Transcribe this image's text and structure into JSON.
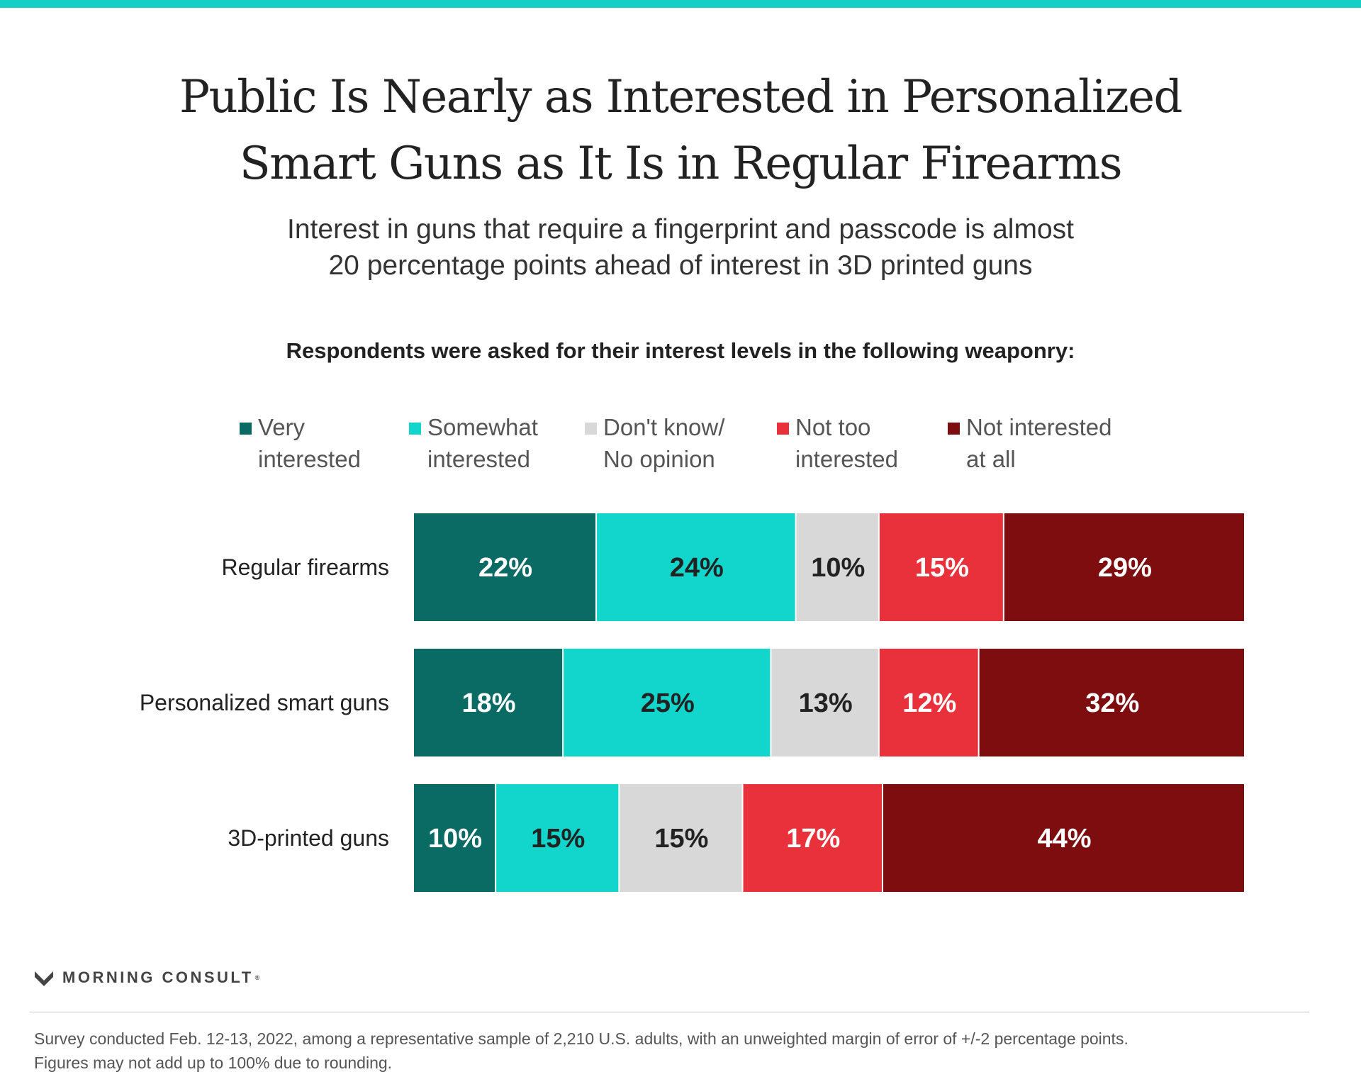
{
  "title": "Public Is Nearly as Interested in Personalized\nSmart Guns as It Is in Regular Firearms",
  "subtitle": "Interest in guns that require a fingerprint and passcode is almost\n20 percentage points ahead of interest in 3D printed guns",
  "question": "Respondents were asked for their interest levels in the following weaponry:",
  "legend": [
    {
      "label": "Very\ninterested",
      "color": "#096b63"
    },
    {
      "label": "Somewhat\ninterested",
      "color": "#12d5cb"
    },
    {
      "label": "Don't know/\nNo opinion",
      "color": "#d8d8d8"
    },
    {
      "label": "Not too\ninterested",
      "color": "#e8313a"
    },
    {
      "label": "Not interested\nat all",
      "color": "#7e0d10"
    }
  ],
  "chart_data": {
    "type": "bar",
    "orientation": "horizontal",
    "stacked": true,
    "categories": [
      "Regular firearms",
      "Personalized smart guns",
      "3D-printed guns"
    ],
    "series": [
      {
        "name": "Very interested",
        "values": [
          22,
          18,
          10
        ],
        "color": "#096b63",
        "label_color": "#ffffff"
      },
      {
        "name": "Somewhat interested",
        "values": [
          24,
          25,
          15
        ],
        "color": "#12d5cb",
        "label_color": "#222222"
      },
      {
        "name": "Don't know/No opinion",
        "values": [
          10,
          13,
          15
        ],
        "color": "#d8d8d8",
        "label_color": "#222222"
      },
      {
        "name": "Not too interested",
        "values": [
          15,
          12,
          17
        ],
        "color": "#e8313a",
        "label_color": "#ffffff"
      },
      {
        "name": "Not interested at all",
        "values": [
          29,
          32,
          44
        ],
        "color": "#7e0d10",
        "label_color": "#ffffff"
      }
    ],
    "value_suffix": "%",
    "xlim": [
      0,
      100
    ]
  },
  "brand": "MORNING CONSULT",
  "footnote": "Survey conducted Feb. 12-13, 2022, among a representative sample of 2,210 U.S. adults, with an unweighted margin of error of +/-2 percentage points.\nFigures may not add up to 100% due to rounding."
}
